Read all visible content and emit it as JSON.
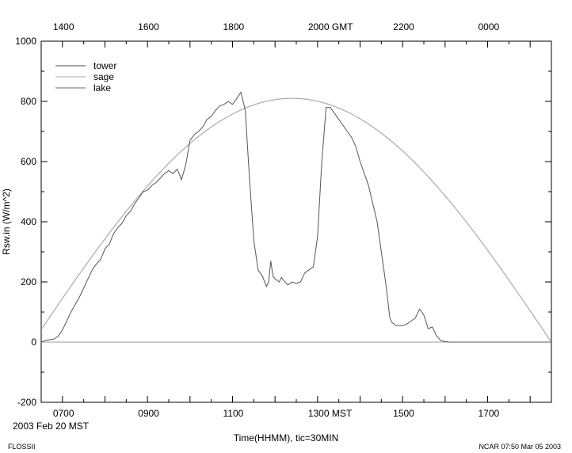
{
  "chart_data": {
    "type": "line",
    "title": "",
    "xlabel": "Time(HHMM), tic=30MIN",
    "ylabel": "Rsw.in (W/m^2)",
    "x_units": "hours MST",
    "xlim": [
      6.5,
      18.5
    ],
    "ylim": [
      -200,
      1000
    ],
    "yticks": [
      -200,
      0,
      200,
      400,
      600,
      800,
      1000
    ],
    "xticks_bottom": [
      {
        "x": 7,
        "label": "0700"
      },
      {
        "x": 9,
        "label": "0900"
      },
      {
        "x": 11,
        "label": "1100"
      },
      {
        "x": 13,
        "label": "1300 MST"
      },
      {
        "x": 15,
        "label": "1500"
      },
      {
        "x": 17,
        "label": "1700"
      }
    ],
    "xticks_top": [
      {
        "x": 7,
        "label": "1400"
      },
      {
        "x": 9,
        "label": "1600"
      },
      {
        "x": 11,
        "label": "1800"
      },
      {
        "x": 13,
        "label": "2000 GMT"
      },
      {
        "x": 15,
        "label": "2200"
      },
      {
        "x": 17,
        "label": "0000"
      }
    ],
    "date_label": "2003 Feb 20 MST",
    "legend_position": "top-left",
    "series": [
      {
        "name": "tower",
        "color": "#555555",
        "x": [
          6.5,
          6.6,
          6.7,
          6.8,
          6.9,
          7.0,
          7.1,
          7.2,
          7.3,
          7.4,
          7.5,
          7.6,
          7.7,
          7.8,
          7.9,
          8.0,
          8.1,
          8.2,
          8.3,
          8.4,
          8.5,
          8.6,
          8.7,
          8.8,
          8.9,
          9.0,
          9.1,
          9.2,
          9.3,
          9.4,
          9.5,
          9.6,
          9.7,
          9.8,
          9.9,
          10.0,
          10.1,
          10.2,
          10.3,
          10.4,
          10.5,
          10.6,
          10.7,
          10.8,
          10.9,
          11.0,
          11.1,
          11.2,
          11.3,
          11.4,
          11.5,
          11.6,
          11.7,
          11.8,
          11.85,
          11.9,
          11.95,
          12.0,
          12.05,
          12.1,
          12.15,
          12.2,
          12.3,
          12.4,
          12.5,
          12.6,
          12.7,
          12.8,
          12.9,
          13.0,
          13.1,
          13.2,
          13.3,
          13.4,
          13.5,
          13.6,
          13.7,
          13.8,
          13.9,
          14.0,
          14.1,
          14.2,
          14.3,
          14.4,
          14.5,
          14.6,
          14.7,
          14.75,
          14.8,
          14.85,
          14.9,
          15.0,
          15.1,
          15.2,
          15.3,
          15.4,
          15.5,
          15.6,
          15.7,
          15.8,
          15.9,
          16.0,
          16.1,
          16.2,
          16.3,
          16.4,
          16.5,
          16.6,
          16.7,
          16.8,
          16.9,
          17.0,
          17.1,
          17.2,
          17.3,
          17.4,
          17.5,
          17.6,
          17.7,
          17.8,
          17.9,
          18.0,
          18.2,
          18.5
        ],
        "values": [
          0,
          6,
          8,
          10,
          20,
          40,
          70,
          100,
          125,
          150,
          180,
          210,
          240,
          260,
          275,
          310,
          325,
          360,
          380,
          395,
          420,
          435,
          460,
          480,
          500,
          505,
          520,
          530,
          545,
          560,
          570,
          560,
          575,
          540,
          590,
          670,
          690,
          700,
          715,
          740,
          750,
          770,
          785,
          790,
          800,
          790,
          810,
          830,
          770,
          540,
          340,
          240,
          220,
          185,
          200,
          270,
          220,
          210,
          205,
          200,
          215,
          205,
          190,
          200,
          195,
          200,
          230,
          240,
          250,
          350,
          600,
          780,
          780,
          760,
          740,
          720,
          700,
          680,
          650,
          600,
          560,
          520,
          460,
          400,
          300,
          200,
          80,
          65,
          60,
          55,
          55,
          55,
          60,
          70,
          80,
          110,
          90,
          45,
          50,
          20,
          5,
          2,
          0,
          0,
          0,
          0,
          0,
          0,
          0,
          0,
          0,
          0,
          0,
          0,
          0,
          0,
          0,
          0,
          0,
          0,
          0,
          0,
          0,
          0
        ],
        "x_start": 6.5,
        "x_step": 0.1
      }
    ]
  },
  "legend": [
    "tower",
    "sage",
    "lake"
  ],
  "footer_left": "FLOSSII",
  "footer_right": "NCAR 07:50 Mar 05 2003"
}
